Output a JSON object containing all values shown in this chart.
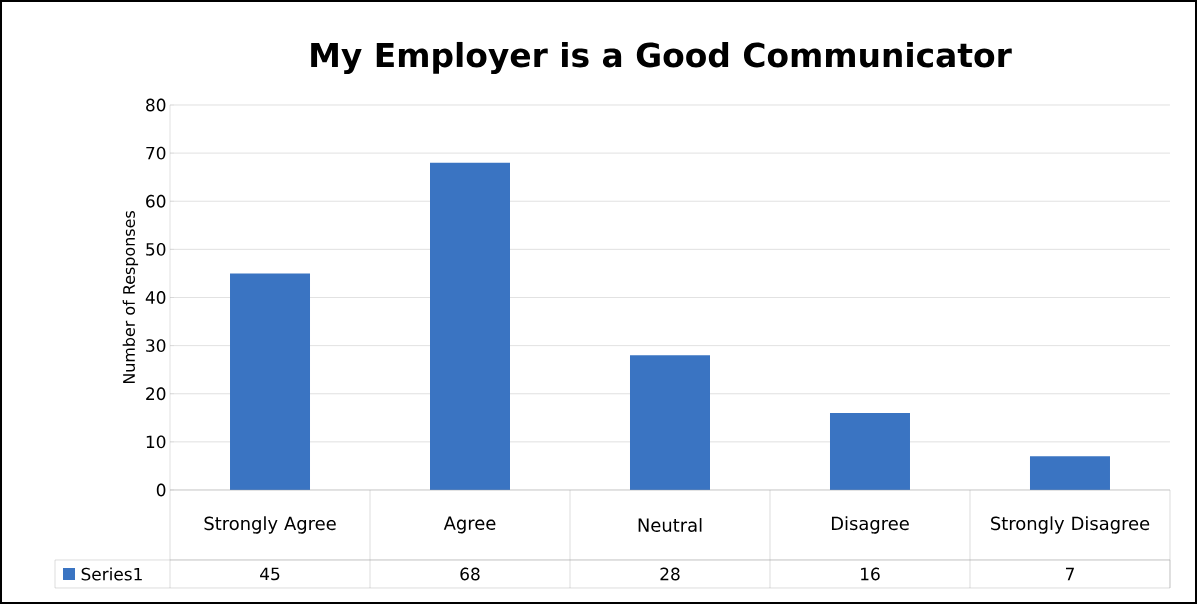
{
  "chart_data": {
    "type": "bar",
    "title": "My Employer is a Good Communicator",
    "ylabel": "Number of Responses",
    "categories": [
      "Strongly Agree",
      "Agree",
      "Neutral",
      "Disagree",
      "Strongly Disagree"
    ],
    "series": [
      {
        "name": "Series1",
        "color": "#3a74c2",
        "values": [
          45,
          68,
          28,
          16,
          7
        ]
      }
    ],
    "ylim": [
      0,
      80
    ],
    "yticks": [
      0,
      10,
      20,
      30,
      40,
      50,
      60,
      70,
      80
    ],
    "grid": "y",
    "data_labels": true
  }
}
